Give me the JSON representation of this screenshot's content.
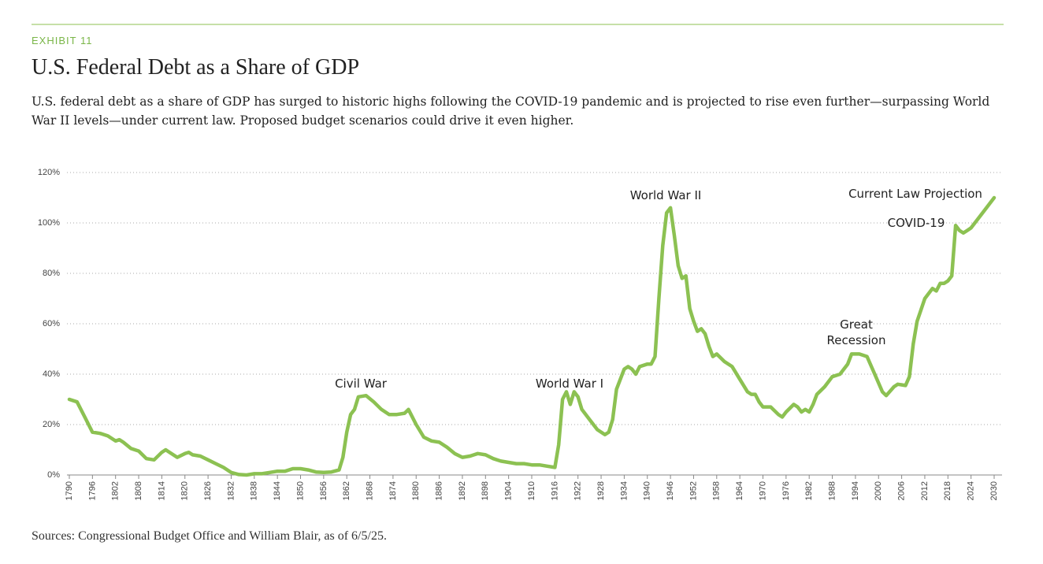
{
  "header": "EXHIBIT 11",
  "source": "Sources: Congressional Budget Office and William Blair, as of 6/5/25.",
  "chart_data": {
    "type": "line",
    "title": "U.S. Federal Debt as a Share of GDP",
    "subtitle": "U.S. federal debt as a share of GDP has surged to historic highs following the COVID-19 pandemic and is projected to rise even further—surpassing World War II levels—under current law. Proposed budget scenarios could drive it even higher.",
    "color": "#8cc152",
    "grid": true,
    "annotations": [
      "Civil War",
      "World War I",
      "World War II",
      "Great Recession",
      "Current Law Projection",
      "COVID-19"
    ],
    "xlim": [
      1790,
      2030
    ],
    "xticks": [
      1790,
      1796,
      1802,
      1808,
      1814,
      1820,
      1826,
      1832,
      1838,
      1844,
      1850,
      1856,
      1862,
      1868,
      1874,
      1880,
      1886,
      1892,
      1898,
      1904,
      1910,
      1916,
      1922,
      1928,
      1934,
      1940,
      1946,
      1952,
      1958,
      1964,
      1970,
      1976,
      1982,
      1988,
      1994,
      2000,
      2006,
      2012,
      2018,
      2024,
      2030
    ],
    "ylim": [
      0,
      120
    ],
    "yticks": [
      {
        "value": 0,
        "label": "0%"
      },
      {
        "value": 20,
        "label": "20%"
      },
      {
        "value": 40,
        "label": "40%"
      },
      {
        "value": 60,
        "label": "60%"
      },
      {
        "value": 80,
        "label": "80%"
      },
      {
        "value": 100,
        "label": "100%"
      },
      {
        "value": 120,
        "label": "120%"
      }
    ],
    "x": [
      1790,
      1792,
      1794,
      1796,
      1798,
      1800,
      1802,
      1803,
      1804,
      1806,
      1808,
      1810,
      1812,
      1814,
      1815,
      1816,
      1818,
      1820,
      1821,
      1822,
      1824,
      1826,
      1828,
      1830,
      1832,
      1834,
      1836,
      1838,
      1840,
      1842,
      1844,
      1846,
      1848,
      1850,
      1852,
      1854,
      1856,
      1858,
      1860,
      1861,
      1862,
      1863,
      1864,
      1865,
      1867,
      1869,
      1871,
      1873,
      1875,
      1877,
      1878,
      1880,
      1882,
      1884,
      1886,
      1888,
      1890,
      1892,
      1894,
      1895,
      1896,
      1898,
      1900,
      1902,
      1904,
      1906,
      1908,
      1910,
      1912,
      1914,
      1916,
      1917,
      1918,
      1919,
      1920,
      1921,
      1922,
      1923,
      1925,
      1927,
      1929,
      1930,
      1931,
      1932,
      1934,
      1935,
      1936,
      1937,
      1938,
      1940,
      1941,
      1942,
      1943,
      1944,
      1945,
      1946,
      1947,
      1948,
      1949,
      1950,
      1951,
      1952,
      1953,
      1954,
      1955,
      1956,
      1957,
      1958,
      1960,
      1962,
      1964,
      1966,
      1967,
      1968,
      1969,
      1970,
      1972,
      1974,
      1975,
      1976,
      1978,
      1979,
      1980,
      1981,
      1982,
      1983,
      1984,
      1986,
      1988,
      1990,
      1992,
      1993,
      1995,
      1997,
      1999,
      2001,
      2002,
      2004,
      2005,
      2007,
      2008,
      2009,
      2010,
      2012,
      2014,
      2015,
      2016,
      2017,
      2018,
      2019,
      2020,
      2021,
      2022,
      2023,
      2024,
      2025,
      2027,
      2030
    ],
    "values": [
      30,
      29,
      23,
      17,
      16.5,
      15.5,
      13.5,
      14,
      13,
      10.5,
      9.5,
      6.5,
      6,
      9,
      10,
      9,
      7,
      8.5,
      9,
      8,
      7.5,
      6,
      4.5,
      3,
      1,
      0.2,
      0,
      0.5,
      0.5,
      1,
      1.5,
      1.5,
      2.5,
      2.5,
      2,
      1.2,
      1,
      1.2,
      2,
      7,
      17,
      24,
      26,
      31,
      31.5,
      29,
      26,
      24,
      24,
      24.5,
      26,
      20,
      15,
      13.5,
      13,
      11,
      8.5,
      7,
      7.5,
      8,
      8.5,
      8,
      6.5,
      5.5,
      5,
      4.5,
      4.5,
      4,
      4,
      3.5,
      3,
      12,
      30,
      33,
      28,
      33,
      31,
      26,
      22,
      18,
      16,
      17,
      22,
      34,
      42,
      43,
      42,
      40,
      43,
      44,
      44,
      47,
      70,
      91,
      104,
      106,
      95,
      83,
      78,
      79,
      66,
      61,
      57,
      58,
      56,
      51,
      47,
      48,
      45,
      43,
      38,
      33,
      32,
      32,
      29,
      27,
      27,
      24,
      23,
      25,
      28,
      27,
      25,
      26,
      25,
      28,
      32,
      35,
      39,
      40,
      44,
      48,
      48,
      47,
      40,
      33,
      31.5,
      35,
      36,
      35.5,
      39,
      52,
      61,
      70,
      74,
      73,
      76,
      76,
      77,
      79,
      99,
      97,
      96,
      97,
      98,
      100,
      104,
      110
    ]
  }
}
